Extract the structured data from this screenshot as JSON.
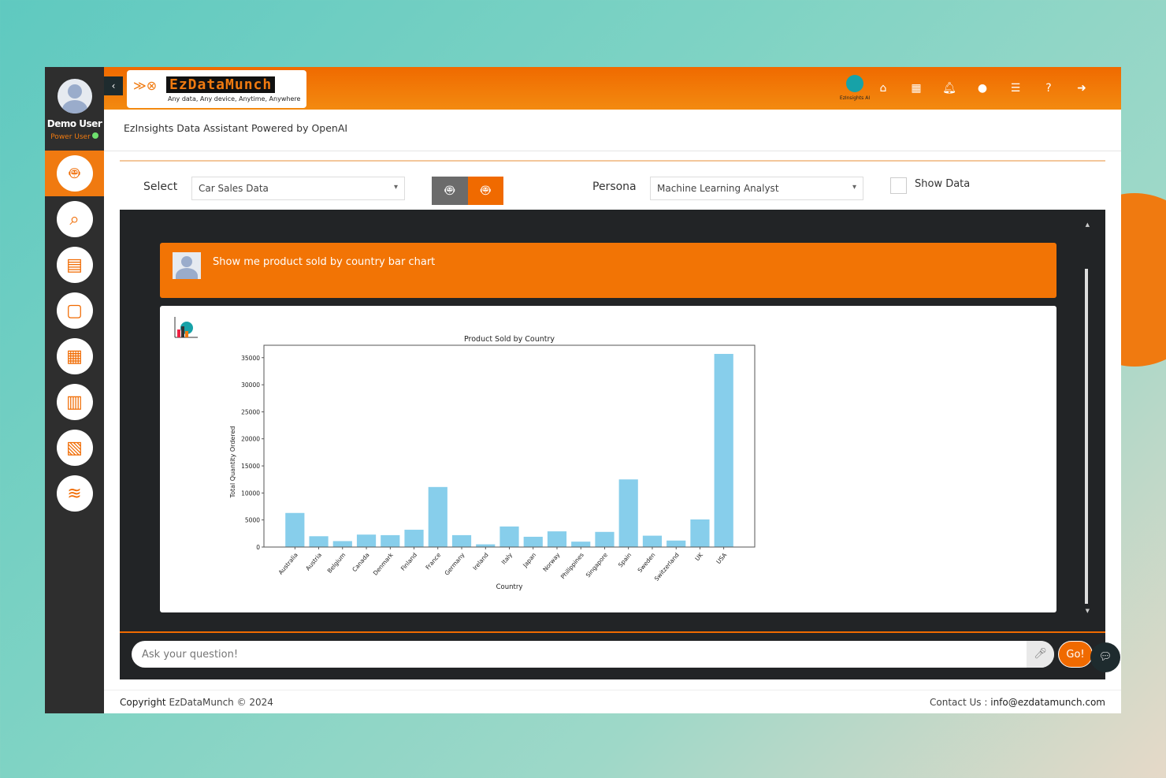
{
  "user": {
    "name": "Demo User",
    "role": "Power User",
    "status_color": "#6ee06e"
  },
  "sidebar": {
    "items": [
      {
        "icon": "robot-data-icon",
        "active": true
      },
      {
        "icon": "analytics-search-icon"
      },
      {
        "icon": "dashboard-monitor-icon"
      },
      {
        "icon": "report-layout-icon"
      },
      {
        "icon": "grid-table-icon"
      },
      {
        "icon": "presentation-chart-icon"
      },
      {
        "icon": "document-chart-icon"
      },
      {
        "icon": "data-lake-icon"
      }
    ]
  },
  "header": {
    "logo_word": "EzDataMunch",
    "logo_tagline": "Any data, Any device, Anytime, Anywhere",
    "ai_label": "EzInsights AI",
    "icons": [
      "home-icon",
      "grid-icon",
      "bell-icon",
      "globe-icon",
      "list-icon",
      "help-icon",
      "logout-icon"
    ]
  },
  "subtitle": "EzInsights Data Assistant Powered by OpenAI",
  "controls": {
    "select_label": "Select",
    "dataset": "Car Sales Data",
    "persona_label": "Persona",
    "persona": "Machine Learning Analyst",
    "show_data_label": "Show Data"
  },
  "chat": {
    "question": "Show me product sold by country bar chart"
  },
  "input": {
    "placeholder": "Ask your question!",
    "go_label": "Go!"
  },
  "footer": {
    "copyright_prefix": "Copyright",
    "copyright": "EzDataMunch © 2024",
    "contact_label": "Contact Us :",
    "contact_email": "info@ezdatamunch.com"
  },
  "colors": {
    "accent": "#f06a00",
    "bar": "#87ceeb",
    "sidebar": "#2e2e2e"
  },
  "chart_data": {
    "type": "bar",
    "title": "Product Sold by Country",
    "xlabel": "Country",
    "ylabel": "Total Quantity Ordered",
    "ylim": [
      0,
      37300
    ],
    "yticks": [
      0,
      5000,
      10000,
      15000,
      20000,
      25000,
      30000,
      35000
    ],
    "grid": false,
    "categories": [
      "Australia",
      "Austria",
      "Belgium",
      "Canada",
      "Denmark",
      "Finland",
      "France",
      "Germany",
      "Ireland",
      "Italy",
      "Japan",
      "Norway",
      "Philippines",
      "Singapore",
      "Spain",
      "Sweden",
      "Switzerland",
      "UK",
      "USA"
    ],
    "values": [
      6300,
      2000,
      1100,
      2300,
      2200,
      3200,
      11100,
      2200,
      500,
      3800,
      1900,
      2900,
      1000,
      2800,
      12500,
      2100,
      1200,
      5100,
      35700
    ]
  }
}
